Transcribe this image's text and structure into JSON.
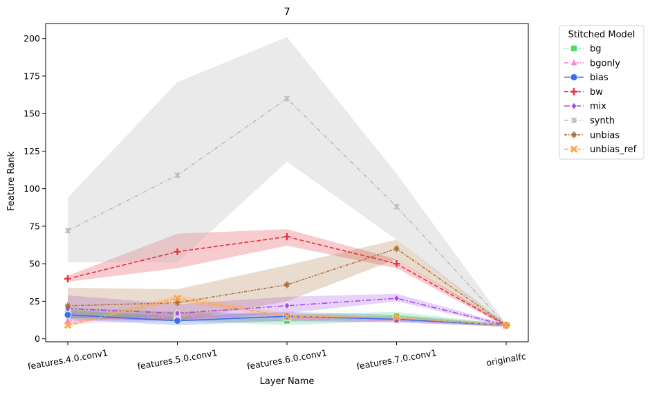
{
  "chart_data": {
    "type": "line",
    "title": "7",
    "xlabel": "Layer Name",
    "ylabel": "Feature Rank",
    "categories": [
      "features.4.0.conv1",
      "features.5.0.conv1",
      "features.6.0.conv1",
      "features.7.0.conv1",
      "originalfc"
    ],
    "ylim": [
      -2,
      210
    ],
    "yticks": [
      0,
      25,
      50,
      75,
      100,
      125,
      150,
      175,
      200
    ],
    "grid": false,
    "legend": {
      "title": "Stitched Model",
      "placement": "outside-top-right"
    },
    "series": [
      {
        "name": "bg",
        "color": "#4cd964",
        "dash": "1.5,3",
        "marker": "square",
        "values": [
          17,
          15,
          12,
          15,
          9
        ],
        "ci_low": [
          13,
          12,
          9,
          12,
          8
        ],
        "ci_high": [
          21,
          18,
          16,
          18,
          10
        ]
      },
      {
        "name": "bgonly",
        "color": "#f08ad0",
        "dash": "6,2,1.5,2,1.5,2",
        "marker": "triangle",
        "values": [
          12,
          15,
          14,
          12,
          9
        ],
        "ci_low": [
          10,
          12,
          11,
          11,
          8
        ],
        "ci_high": [
          15,
          18,
          17,
          14,
          10
        ]
      },
      {
        "name": "bias",
        "color": "#3a6ef0",
        "dash": "",
        "marker": "circle",
        "values": [
          16,
          12,
          15,
          13,
          9
        ],
        "ci_low": [
          13,
          9,
          12,
          11,
          8
        ],
        "ci_high": [
          19,
          15,
          18,
          16,
          10
        ]
      },
      {
        "name": "bw",
        "color": "#e5313c",
        "dash": "6,3",
        "marker": "plus",
        "values": [
          40,
          58,
          68,
          50,
          9
        ],
        "ci_low": [
          38,
          47,
          62,
          47,
          8
        ],
        "ci_high": [
          42,
          70,
          73,
          53,
          10
        ]
      },
      {
        "name": "mix",
        "color": "#a24de8",
        "dash": "8,3,2,3",
        "marker": "diamond",
        "values": [
          20,
          17,
          22,
          27,
          9
        ],
        "ci_low": [
          14,
          12,
          17,
          25,
          8
        ],
        "ci_high": [
          29,
          23,
          28,
          30,
          10
        ]
      },
      {
        "name": "synth",
        "color": "#bbbbbb",
        "dash": "6,3,1.5,3",
        "marker": "star",
        "values": [
          72,
          109,
          160,
          88,
          9
        ],
        "ci_low": [
          51,
          51,
          118,
          66,
          8
        ],
        "ci_high": [
          94,
          171,
          201,
          110,
          10
        ]
      },
      {
        "name": "unbias",
        "color": "#a8703d",
        "dash": "4,2,1.5,2",
        "marker": "cross",
        "values": [
          22,
          24,
          36,
          60,
          9
        ],
        "ci_low": [
          14,
          12,
          25,
          53,
          8
        ],
        "ci_high": [
          34,
          33,
          49,
          66,
          10
        ]
      },
      {
        "name": "unbias_ref",
        "color": "#ffa54a",
        "dash": "6,3",
        "marker": "x",
        "values": [
          9,
          27,
          15,
          14,
          9
        ],
        "ci_low": [
          8,
          25,
          13,
          13,
          8
        ],
        "ci_high": [
          11,
          29,
          17,
          15,
          10
        ]
      }
    ]
  }
}
